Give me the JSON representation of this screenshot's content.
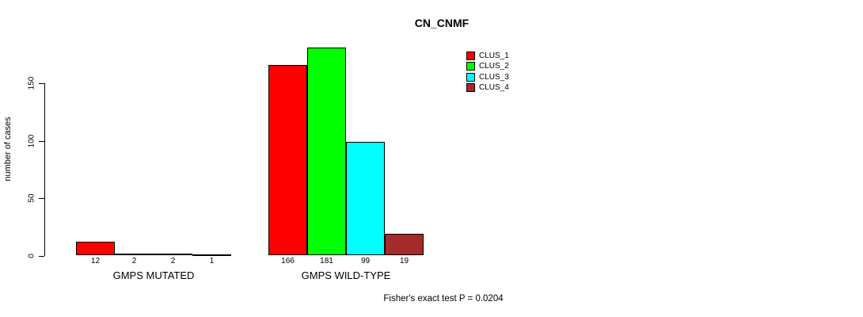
{
  "title": "CN_CNMF",
  "y_axis": {
    "label": "number of cases",
    "ticks": [
      0,
      50,
      100,
      150
    ]
  },
  "footer": "Fisher's exact test P = 0.0204",
  "legend": {
    "items": [
      {
        "label": "CLUS_1",
        "color": "#FF0000"
      },
      {
        "label": "CLUS_2",
        "color": "#00FF00"
      },
      {
        "label": "CLUS_3",
        "color": "#00FFFF"
      },
      {
        "label": "CLUS_4",
        "color": "#A52A2A"
      }
    ]
  },
  "chart_data": {
    "type": "bar",
    "title": "CN_CNMF",
    "ylabel": "number of cases",
    "xlabel": "",
    "ylim": [
      0,
      185
    ],
    "yticks": [
      0,
      50,
      100,
      150
    ],
    "grid": false,
    "legend_position": "top-right",
    "categories": [
      "GMPS MUTATED",
      "GMPS WILD-TYPE"
    ],
    "series": [
      {
        "name": "CLUS_1",
        "color": "#FF0000",
        "values": [
          12,
          166
        ]
      },
      {
        "name": "CLUS_2",
        "color": "#00FF00",
        "values": [
          2,
          181
        ]
      },
      {
        "name": "CLUS_3",
        "color": "#00FFFF",
        "values": [
          2,
          99
        ]
      },
      {
        "name": "CLUS_4",
        "color": "#A52A2A",
        "values": [
          1,
          19
        ]
      }
    ],
    "bar_value_labels": [
      [
        12,
        2,
        2,
        1
      ],
      [
        166,
        181,
        99,
        19
      ]
    ],
    "annotation": "Fisher's exact test P = 0.0204"
  }
}
